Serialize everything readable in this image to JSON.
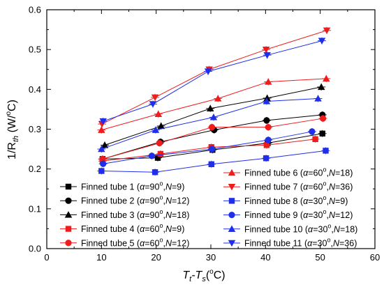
{
  "chart_data": {
    "type": "scatter",
    "xlabel": "Tt-Ts(oC)",
    "xlabel_parts": {
      "main": "T",
      "sub1": "t",
      "minus": "-T",
      "sub2": "s",
      "open": "(",
      "sup": "o",
      "unit": "C)"
    },
    "ylabel": "1/Rth (W/oC)",
    "ylabel_parts": {
      "main": "1/R",
      "sub": "th",
      "unit_open": " (W/",
      "sup": "o",
      "unit": "C)"
    },
    "xlim": [
      0,
      60
    ],
    "ylim": [
      0.0,
      0.6
    ],
    "xticks": [
      "0",
      "10",
      "20",
      "30",
      "40",
      "50",
      "60"
    ],
    "yticks": [
      "0.0",
      "0.1",
      "0.2",
      "0.3",
      "0.4",
      "0.5",
      "0.6"
    ],
    "grid": false,
    "legend_placement": "bottom",
    "series": [
      {
        "name": "Finned tube 1",
        "alpha": "90",
        "N": "9",
        "color": "#000000",
        "marker": "square",
        "points": [
          [
            10.2,
            0.225
          ],
          [
            20.3,
            0.228
          ],
          [
            30.3,
            0.248
          ],
          [
            40.4,
            0.265
          ],
          [
            50.4,
            0.289
          ]
        ]
      },
      {
        "name": "Finned tube 2",
        "alpha": "90",
        "N": "12",
        "color": "#000000",
        "marker": "circle",
        "points": [
          [
            10.2,
            0.225
          ],
          [
            20.8,
            0.268
          ],
          [
            30.6,
            0.298
          ],
          [
            40.2,
            0.322
          ],
          [
            50.4,
            0.336
          ]
        ]
      },
      {
        "name": "Finned tube 3",
        "alpha": "90",
        "N": "18",
        "color": "#000000",
        "marker": "triangle-up",
        "points": [
          [
            10.6,
            0.26
          ],
          [
            20.9,
            0.308
          ],
          [
            29.9,
            0.352
          ],
          [
            40.3,
            0.378
          ],
          [
            50.2,
            0.406
          ]
        ]
      },
      {
        "name": "Finned tube 4",
        "alpha": "60",
        "N": "9",
        "color": "#ee1c1c",
        "marker": "square",
        "points": [
          [
            10.2,
            0.22
          ],
          [
            20.8,
            0.238
          ],
          [
            30.1,
            0.255
          ],
          [
            40.2,
            0.26
          ],
          [
            49.1,
            0.275
          ]
        ]
      },
      {
        "name": "Finned tube 5",
        "alpha": "60",
        "N": "12",
        "color": "#ee1c1c",
        "marker": "circle",
        "points": [
          [
            10.2,
            0.225
          ],
          [
            20.6,
            0.265
          ],
          [
            30.2,
            0.305
          ],
          [
            40.5,
            0.305
          ],
          [
            50.5,
            0.327
          ]
        ]
      },
      {
        "name": "Finned tube 6",
        "alpha": "60",
        "N": "18",
        "color": "#ee1c1c",
        "marker": "triangle-up",
        "points": [
          [
            10.0,
            0.298
          ],
          [
            20.4,
            0.338
          ],
          [
            31.3,
            0.377
          ],
          [
            40.5,
            0.419
          ],
          [
            51.1,
            0.427
          ]
        ]
      },
      {
        "name": "Finned tube 7",
        "alpha": "60",
        "N": "36",
        "color": "#ee1c1c",
        "marker": "triangle-down",
        "points": [
          [
            10.1,
            0.313
          ],
          [
            19.8,
            0.38
          ],
          [
            29.7,
            0.45
          ],
          [
            40.1,
            0.5
          ],
          [
            51.2,
            0.548
          ]
        ]
      },
      {
        "name": "Finned tube 8",
        "alpha": "30",
        "N": "9",
        "color": "#1f2ee8",
        "marker": "square",
        "points": [
          [
            10.0,
            0.195
          ],
          [
            19.8,
            0.192
          ],
          [
            30.1,
            0.212
          ],
          [
            40.1,
            0.227
          ],
          [
            51.0,
            0.246
          ]
        ]
      },
      {
        "name": "Finned tube 9",
        "alpha": "30",
        "N": "12",
        "color": "#1f2ee8",
        "marker": "circle",
        "points": [
          [
            10.3,
            0.213
          ],
          [
            19.2,
            0.233
          ],
          [
            30.2,
            0.25
          ],
          [
            40.5,
            0.273
          ],
          [
            48.5,
            0.294
          ]
        ]
      },
      {
        "name": "Finned tube 10",
        "alpha": "30",
        "N": "18",
        "color": "#1f2ee8",
        "marker": "triangle-up",
        "points": [
          [
            10.0,
            0.25
          ],
          [
            19.9,
            0.298
          ],
          [
            30.5,
            0.33
          ],
          [
            40.2,
            0.37
          ],
          [
            49.6,
            0.377
          ]
        ]
      },
      {
        "name": "Finned tube 11",
        "alpha": "30",
        "N": "36",
        "color": "#1f2ee8",
        "marker": "triangle-down",
        "points": [
          [
            10.3,
            0.32
          ],
          [
            19.4,
            0.363
          ],
          [
            29.5,
            0.445
          ],
          [
            40.3,
            0.486
          ],
          [
            50.3,
            0.522
          ]
        ]
      }
    ],
    "legend_texts": {
      "alpha_symbol": "α",
      "degree": "o",
      "eq": "=",
      "sep": ",",
      "n_label": "N",
      "open": " (",
      "close": ")"
    }
  }
}
